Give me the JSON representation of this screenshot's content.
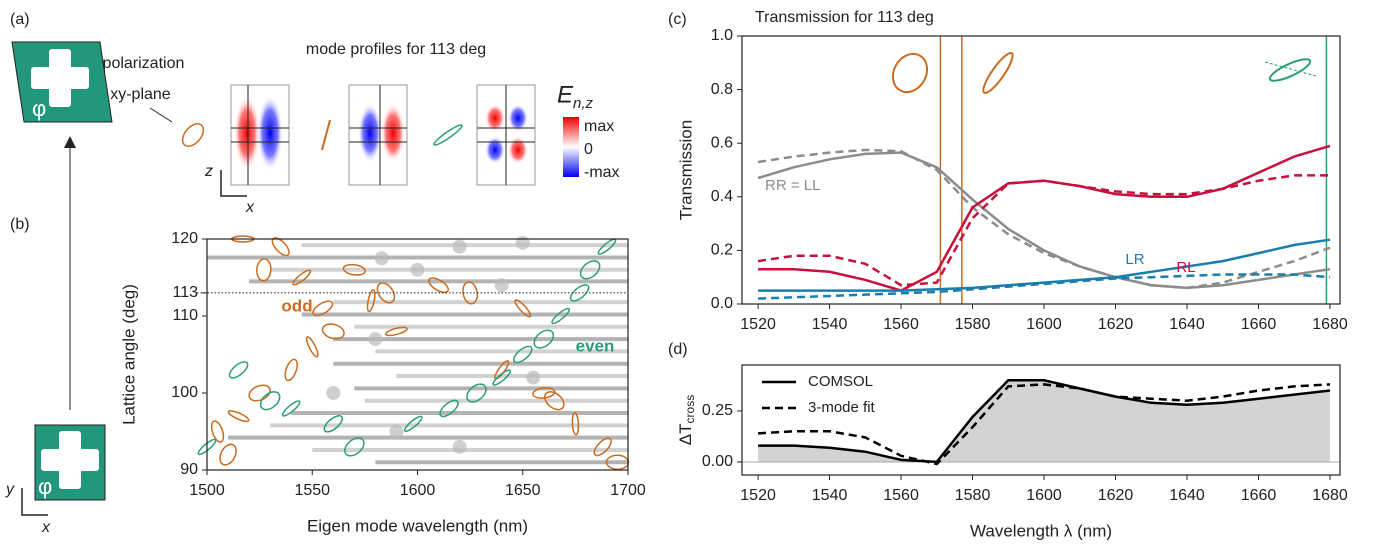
{
  "figure": {
    "panel_a": {
      "label": "(a)",
      "note_line1": "far field polarization",
      "note_line2": "in xy-plane",
      "title": "mode profiles for 113 deg",
      "colorbar_label": "E",
      "colorbar_subscript": "n,z",
      "colorbar_ticks": [
        "max",
        "0",
        "-max"
      ],
      "axis_z": "z",
      "axis_x": "x"
    },
    "panel_b": {
      "label": "(b)",
      "angle_symbol": "φ",
      "axis_y": "y",
      "axis_x": "x"
    },
    "panel_c": {
      "label": "(c)"
    },
    "panel_d": {
      "label": "(d)"
    }
  },
  "chart_data": [
    {
      "type": "scatter",
      "xlabel": "Eigen mode wavelength  (nm)",
      "ylabel": "Lattice angle (deg)",
      "xlim": [
        1500,
        1700
      ],
      "ylim": [
        90,
        120
      ],
      "xticks": [
        1500,
        1550,
        1600,
        1650,
        1700
      ],
      "yticks": [
        90,
        100,
        110,
        113,
        120
      ],
      "reference_line": 113,
      "segments": [
        [
          1545,
          1700,
          119.2
        ],
        [
          1500,
          1700,
          117.6
        ],
        [
          1530,
          1700,
          116
        ],
        [
          1520,
          1700,
          114.5
        ],
        [
          1560,
          1700,
          111.8
        ],
        [
          1545,
          1700,
          110.2
        ],
        [
          1570,
          1700,
          108.6
        ],
        [
          1560,
          1700,
          107
        ],
        [
          1580,
          1700,
          105.4
        ],
        [
          1560,
          1700,
          103.8
        ],
        [
          1590,
          1700,
          102.2
        ],
        [
          1570,
          1700,
          100.6
        ],
        [
          1575,
          1700,
          99
        ],
        [
          1540,
          1700,
          97.4
        ],
        [
          1530,
          1700,
          95.8
        ],
        [
          1510,
          1700,
          94.2
        ],
        [
          1550,
          1700,
          92.6
        ],
        [
          1580,
          1700,
          91
        ]
      ],
      "series": [
        {
          "color": "#bbbbbb",
          "x": [
            1583,
            1620,
            1650,
            1600,
            1560,
            1590,
            1640,
            1580,
            1655,
            1620
          ],
          "values": [
            117.5,
            119,
            119.5,
            116,
            100,
            95,
            114,
            107,
            102,
            93
          ]
        },
        {
          "name": "odd",
          "color": "#cc6a1e",
          "x": [
            1517,
            1535,
            1527,
            1545,
            1570,
            1585,
            1578,
            1555,
            1560,
            1550,
            1540,
            1525,
            1515,
            1505,
            1510,
            1590,
            1610,
            1625,
            1640,
            1660,
            1665,
            1675,
            1688,
            1695,
            1650
          ],
          "values": [
            120,
            119,
            116,
            115,
            116,
            113,
            112,
            111,
            108,
            106,
            103,
            100,
            97,
            95,
            92,
            108,
            114,
            113,
            103,
            100,
            99,
            96,
            93,
            91,
            111
          ]
        },
        {
          "name": "even",
          "color": "#2a9d7a",
          "x": [
            1500,
            1515,
            1530,
            1540,
            1560,
            1570,
            1598,
            1615,
            1628,
            1640,
            1650,
            1660,
            1668,
            1677,
            1682,
            1690
          ],
          "values": [
            93,
            103,
            99,
            98,
            96,
            93,
            96,
            98,
            100,
            102,
            105,
            107,
            110,
            113,
            116,
            119
          ]
        }
      ]
    },
    {
      "type": "line",
      "title": "Transmission for 113 deg",
      "ylabel": "Transmission",
      "x": [
        1520,
        1530,
        1540,
        1550,
        1560,
        1570,
        1580,
        1590,
        1600,
        1610,
        1620,
        1630,
        1640,
        1650,
        1660,
        1670,
        1680
      ],
      "xlim": [
        1515.5,
        1682.8
      ],
      "ylim": [
        0,
        1
      ],
      "xticks": [
        1520,
        1540,
        1560,
        1580,
        1600,
        1620,
        1640,
        1660,
        1680
      ],
      "yticks": [
        {
          "value": 0,
          "label": "0.0"
        },
        0.2,
        0.4,
        0.6,
        0.8,
        {
          "value": 1,
          "label": "1.0"
        }
      ],
      "vlines": [
        {
          "x": 1571,
          "color": "#cc6a1e"
        },
        {
          "x": 1577,
          "color": "#cc6a1e"
        },
        {
          "x": 1679,
          "color": "#2a9d7a"
        }
      ],
      "series": [
        {
          "name": "RR = LL",
          "color": "#8c8c8c",
          "dash": false,
          "values": [
            0.47,
            0.51,
            0.54,
            0.56,
            0.565,
            0.51,
            0.39,
            0.28,
            0.2,
            0.14,
            0.1,
            0.07,
            0.06,
            0.07,
            0.09,
            0.11,
            0.13
          ]
        },
        {
          "color": "#8c8c8c",
          "dash": true,
          "values": [
            0.53,
            0.55,
            0.565,
            0.575,
            0.57,
            0.5,
            0.36,
            0.26,
            0.19,
            0.14,
            0.1,
            0.07,
            0.06,
            0.08,
            0.12,
            0.16,
            0.21
          ]
        },
        {
          "name": "RL",
          "color": "#c8103c",
          "dash": false,
          "values": [
            0.13,
            0.13,
            0.12,
            0.09,
            0.05,
            0.12,
            0.36,
            0.45,
            0.46,
            0.44,
            0.41,
            0.4,
            0.4,
            0.43,
            0.49,
            0.55,
            0.59
          ]
        },
        {
          "color": "#c8103c",
          "dash": true,
          "values": [
            0.16,
            0.18,
            0.18,
            0.15,
            0.07,
            0.08,
            0.32,
            0.45,
            0.46,
            0.44,
            0.42,
            0.41,
            0.41,
            0.43,
            0.46,
            0.48,
            0.48
          ]
        },
        {
          "name": "LR",
          "color": "#1a7db0",
          "dash": false,
          "values": [
            0.05,
            0.05,
            0.05,
            0.05,
            0.05,
            0.055,
            0.06,
            0.07,
            0.08,
            0.09,
            0.1,
            0.12,
            0.14,
            0.16,
            0.19,
            0.22,
            0.24
          ]
        },
        {
          "color": "#1a7db0",
          "dash": true,
          "values": [
            0.02,
            0.025,
            0.03,
            0.035,
            0.04,
            0.045,
            0.055,
            0.065,
            0.075,
            0.085,
            0.095,
            0.1,
            0.105,
            0.11,
            0.11,
            0.11,
            0.1
          ]
        }
      ]
    },
    {
      "type": "line",
      "xlabel": "Wavelength λ (nm)",
      "ylabel": "ΔT",
      "ylabel_subscript": "cross",
      "x": [
        1520,
        1530,
        1540,
        1550,
        1560,
        1570,
        1580,
        1590,
        1600,
        1610,
        1620,
        1630,
        1640,
        1650,
        1660,
        1670,
        1680
      ],
      "xlim": [
        1515.5,
        1682.8
      ],
      "ylim": [
        -0.064,
        0.475
      ],
      "xticks": [
        1520,
        1540,
        1560,
        1580,
        1600,
        1620,
        1640,
        1660,
        1680
      ],
      "yticks": [
        {
          "value": 0,
          "label": "0.00"
        },
        0.25
      ],
      "zero_line": "#aaaaaa",
      "series": [
        {
          "name": "COMSOL",
          "color": "#000000",
          "dash": false,
          "fill": "#d3d3d3",
          "values": [
            0.08,
            0.08,
            0.07,
            0.05,
            0.01,
            0,
            0.22,
            0.4,
            0.4,
            0.36,
            0.32,
            0.29,
            0.28,
            0.29,
            0.31,
            0.33,
            0.35
          ]
        },
        {
          "name": "3-mode fit",
          "color": "#000000",
          "dash": true,
          "values": [
            0.14,
            0.15,
            0.15,
            0.12,
            0.03,
            -0.01,
            0.17,
            0.37,
            0.38,
            0.36,
            0.32,
            0.31,
            0.3,
            0.32,
            0.35,
            0.37,
            0.38
          ]
        }
      ]
    }
  ]
}
